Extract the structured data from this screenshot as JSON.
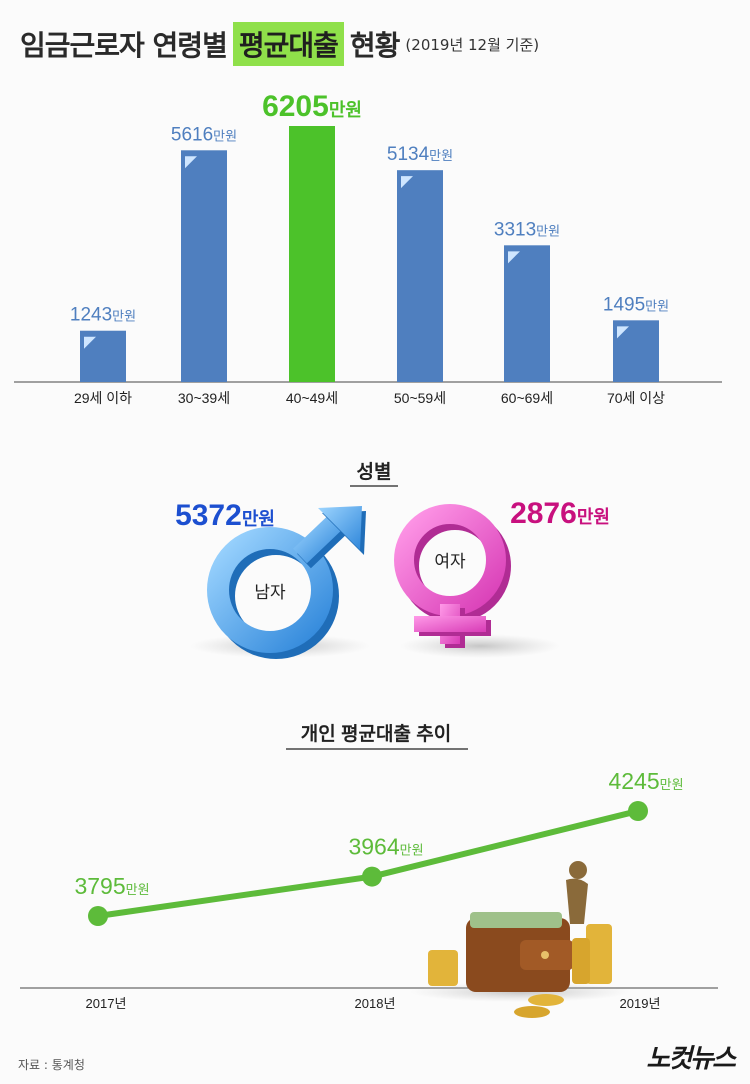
{
  "title": {
    "prefix": "임금근로자 연령별",
    "highlight": "평균대출",
    "suffix": "현황",
    "note": "(2019년 12월 기준)"
  },
  "colors": {
    "bar": "#4f7fbf",
    "highlight_bar": "#4cc22a",
    "line": "#5dbb3a",
    "male": "#4ea6ea",
    "female": "#f06bd0",
    "male_label": "#1c4fd0",
    "female_label": "#c8107e"
  },
  "unit": "만원",
  "chart_data": [
    {
      "type": "bar",
      "categories": [
        "29세 이하",
        "30~39세",
        "40~49세",
        "50~59세",
        "60~69세",
        "70세 이상"
      ],
      "values": [
        1243,
        5616,
        6205,
        5134,
        3313,
        1495
      ],
      "highlight_index": 2,
      "unit": "만원"
    },
    {
      "type": "bar",
      "title": "성별",
      "categories": [
        "남자",
        "여자"
      ],
      "values": [
        5372,
        2876
      ],
      "unit": "만원"
    },
    {
      "type": "line",
      "title": "개인 평균대출 추이",
      "x": [
        "2017년",
        "2018년",
        "2019년"
      ],
      "values": [
        3795,
        3964,
        4245
      ],
      "unit": "만원"
    }
  ],
  "footer": {
    "source": "자료 : 통계청",
    "logo": "노컷뉴스"
  }
}
